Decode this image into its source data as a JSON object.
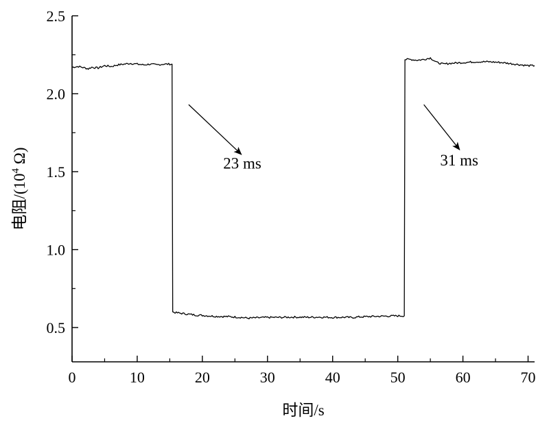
{
  "chart_data": {
    "type": "line",
    "xlabel": "时间/s",
    "ylabel_main": "电阻/(10",
    "ylabel_sup": "4",
    "ylabel_tail": " Ω)",
    "xlim": [
      0,
      71
    ],
    "ylim": [
      0.28,
      2.5
    ],
    "x_ticks": [
      0,
      10,
      20,
      30,
      40,
      50,
      60,
      70
    ],
    "x_tick_labels": [
      "0",
      "10",
      "20",
      "30",
      "40",
      "50",
      "60",
      "70"
    ],
    "y_ticks": [
      0.5,
      1.0,
      1.5,
      2.0,
      2.5
    ],
    "y_tick_labels": [
      "0.5",
      "1.0",
      "1.5",
      "2.0",
      "2.5"
    ],
    "grid": false,
    "legend": "none",
    "series": [
      {
        "color": "#000000",
        "x": [
          0,
          1,
          2,
          2.5,
          3,
          4,
          5,
          6,
          7,
          8,
          9,
          10,
          11,
          12,
          13,
          14,
          15,
          15.35,
          15.45,
          16,
          17,
          18,
          19,
          20,
          22,
          24,
          26,
          27,
          28,
          30,
          32,
          34,
          36,
          38,
          40,
          42,
          43,
          44,
          46,
          48,
          50,
          51.0,
          51.1,
          52,
          53,
          54,
          55,
          56,
          57,
          58,
          60,
          62,
          64,
          66,
          68,
          70,
          71
        ],
        "y": [
          2.17,
          2.175,
          2.165,
          2.16,
          2.17,
          2.165,
          2.18,
          2.175,
          2.185,
          2.19,
          2.195,
          2.19,
          2.185,
          2.19,
          2.185,
          2.19,
          2.19,
          2.19,
          0.6,
          0.595,
          0.59,
          0.585,
          0.58,
          0.578,
          0.572,
          0.57,
          0.565,
          0.56,
          0.562,
          0.565,
          0.565,
          0.567,
          0.566,
          0.567,
          0.565,
          0.566,
          0.564,
          0.568,
          0.571,
          0.573,
          0.575,
          0.575,
          2.22,
          2.22,
          2.215,
          2.22,
          2.23,
          2.2,
          2.19,
          2.195,
          2.2,
          2.205,
          2.205,
          2.2,
          2.19,
          2.18,
          2.18
        ]
      }
    ],
    "annotations": [
      {
        "text": "23 ms",
        "x": 23.2,
        "y": 1.52,
        "arrow_from": [
          17.9,
          1.93
        ],
        "arrow_to": [
          26.0,
          1.61
        ]
      },
      {
        "text": "31 ms",
        "x": 56.5,
        "y": 1.54,
        "arrow_from": [
          54.0,
          1.93
        ],
        "arrow_to": [
          59.5,
          1.64
        ]
      }
    ]
  }
}
